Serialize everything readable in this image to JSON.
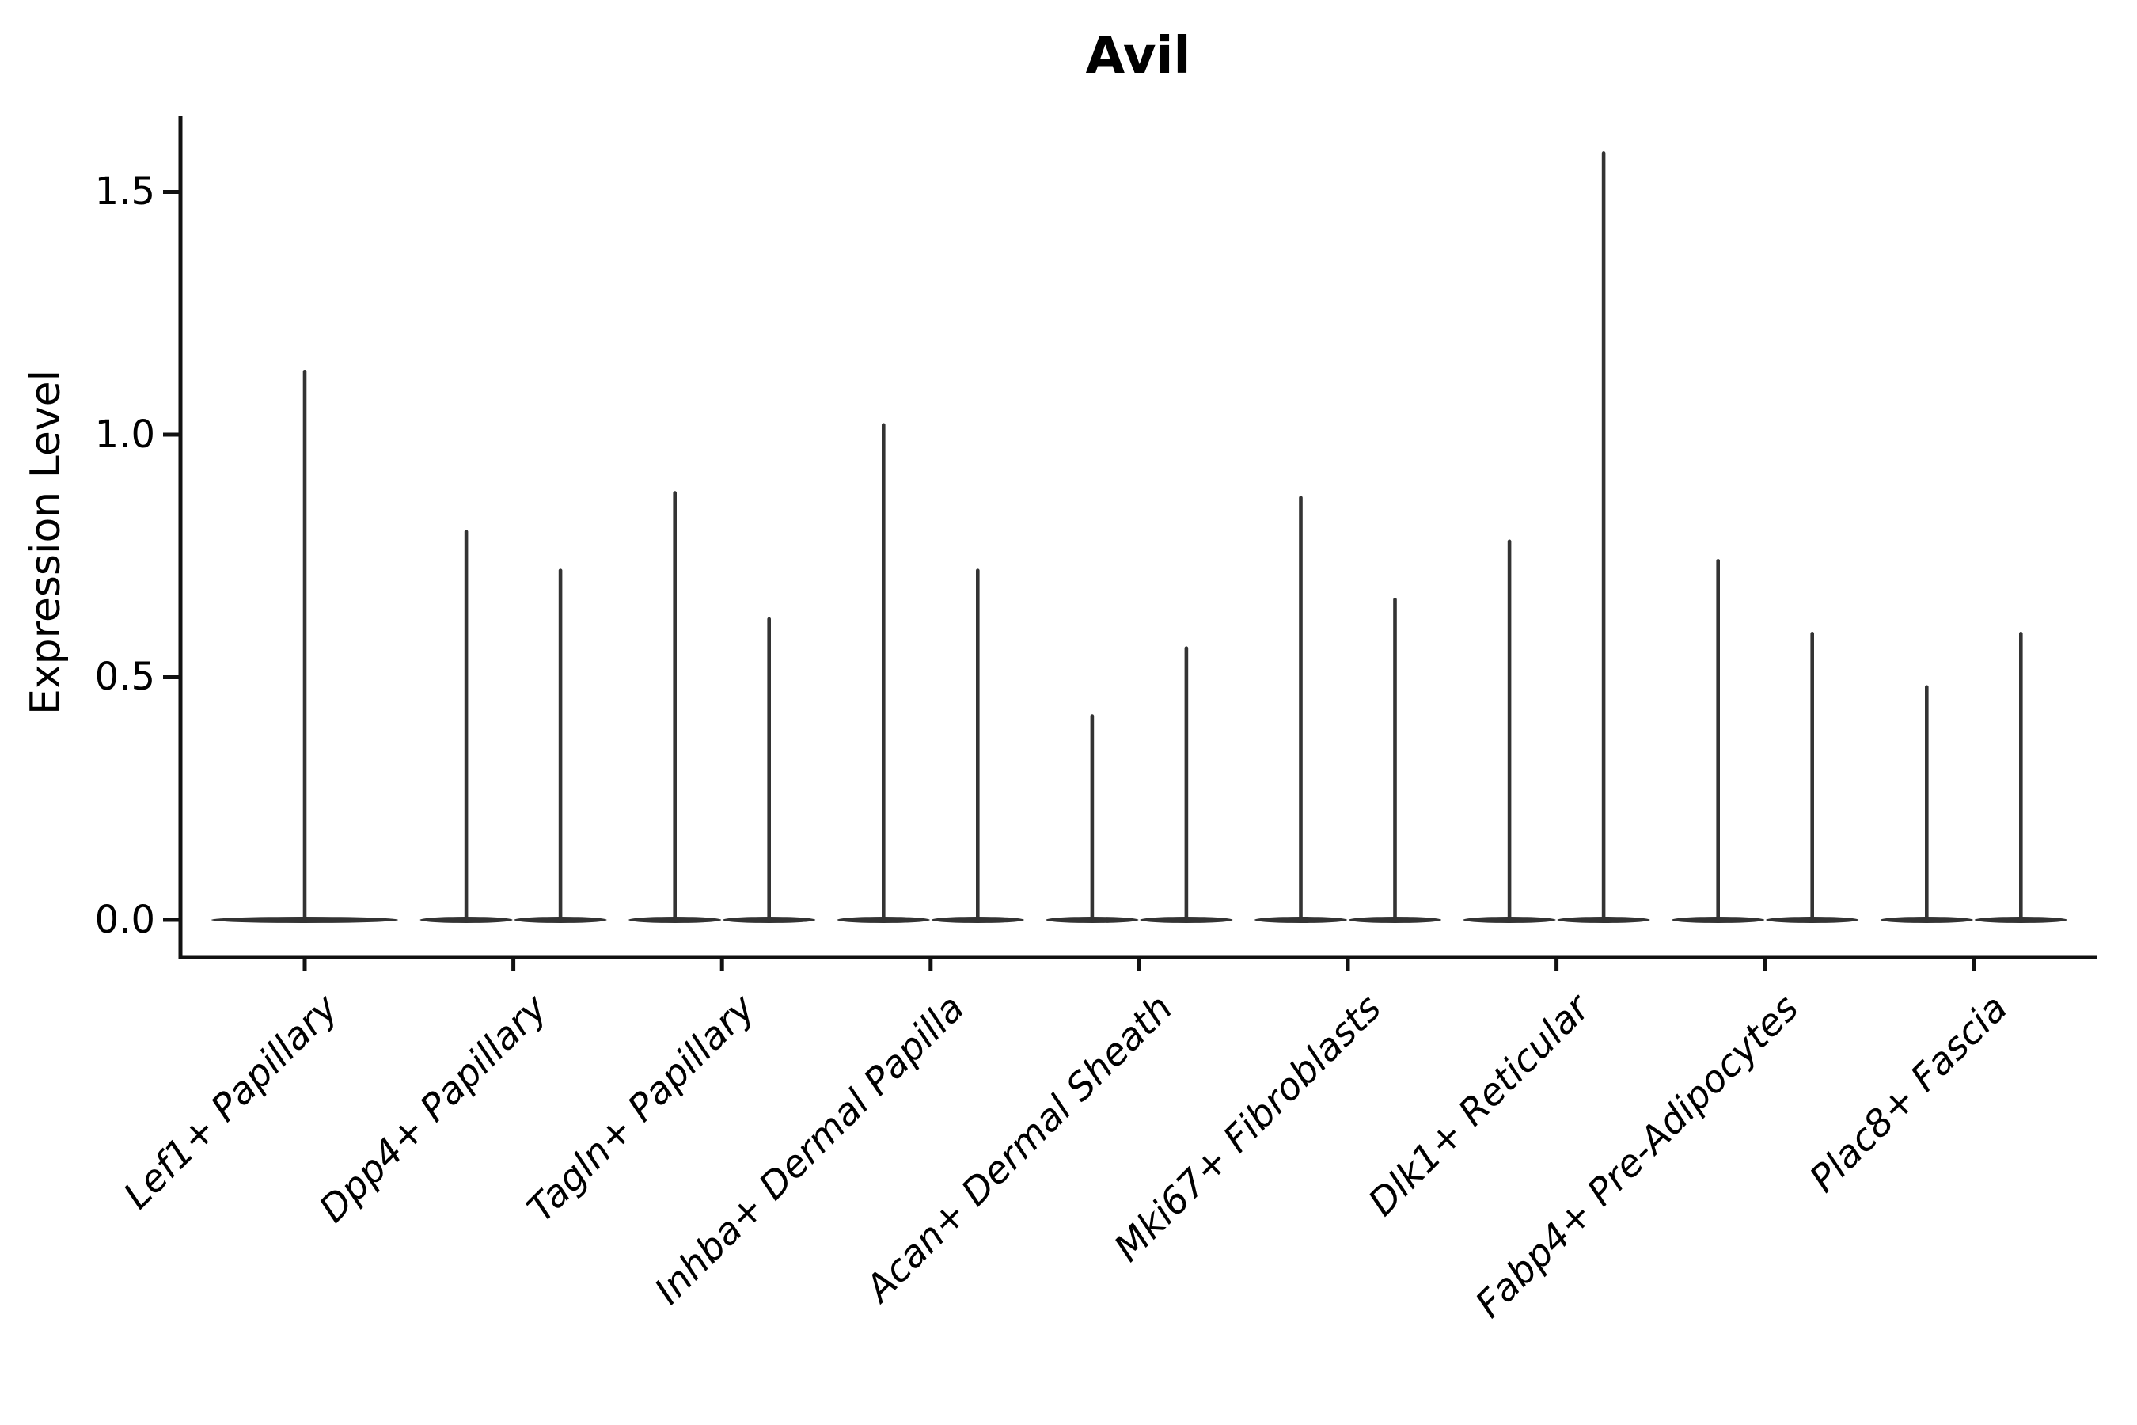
{
  "chart_data": {
    "type": "violin",
    "title": "Avil",
    "ylabel": "Expression Level",
    "xlabel": "",
    "ylim": [
      0,
      1.66
    ],
    "grid": false,
    "legend": false,
    "background": "#ffffff",
    "violin_color": "#333333",
    "axis_color": "#111111",
    "yticks": [
      {
        "label": "0.0",
        "value": 0.0
      },
      {
        "label": "0.5",
        "value": 0.5
      },
      {
        "label": "1.0",
        "value": 1.0
      },
      {
        "label": "1.5",
        "value": 1.5
      }
    ],
    "categories": [
      "Lef1+ Papillary",
      "Dpp4+ Papillary",
      "Tagln+ Papillary",
      "Inhba+ Dermal Papilla",
      "Acan+ Dermal Sheath",
      "Mki67+ Fibroblasts",
      "Dlk1+ Reticular",
      "Fabp4+ Pre-Adipocytes",
      "Plac8+ Fascia"
    ],
    "groups": [
      {
        "label": "Lef1+ Papillary",
        "spikes": [
          {
            "pos": "center",
            "max": 1.13
          }
        ]
      },
      {
        "label": "Dpp4+ Papillary",
        "spikes": [
          {
            "pos": "left",
            "max": 0.8
          },
          {
            "pos": "right",
            "max": 0.72
          }
        ]
      },
      {
        "label": "Tagln+ Papillary",
        "spikes": [
          {
            "pos": "left",
            "max": 0.88
          },
          {
            "pos": "right",
            "max": 0.62
          }
        ]
      },
      {
        "label": "Inhba+ Dermal Papilla",
        "spikes": [
          {
            "pos": "left",
            "max": 1.02
          },
          {
            "pos": "right",
            "max": 0.72
          }
        ]
      },
      {
        "label": "Acan+ Dermal Sheath",
        "spikes": [
          {
            "pos": "left",
            "max": 0.42
          },
          {
            "pos": "right",
            "max": 0.56
          }
        ]
      },
      {
        "label": "Mki67+ Fibroblasts",
        "spikes": [
          {
            "pos": "left",
            "max": 0.87
          },
          {
            "pos": "right",
            "max": 0.66
          }
        ]
      },
      {
        "label": "Dlk1+ Reticular",
        "spikes": [
          {
            "pos": "left",
            "max": 0.78
          },
          {
            "pos": "right",
            "max": 1.58
          }
        ]
      },
      {
        "label": "Fabp4+ Pre-Adipocytes",
        "spikes": [
          {
            "pos": "left",
            "max": 0.74
          },
          {
            "pos": "right",
            "max": 0.59
          }
        ]
      },
      {
        "label": "Plac8+ Fascia",
        "spikes": [
          {
            "pos": "left",
            "max": 0.48
          },
          {
            "pos": "right",
            "max": 0.59
          }
        ]
      }
    ]
  }
}
